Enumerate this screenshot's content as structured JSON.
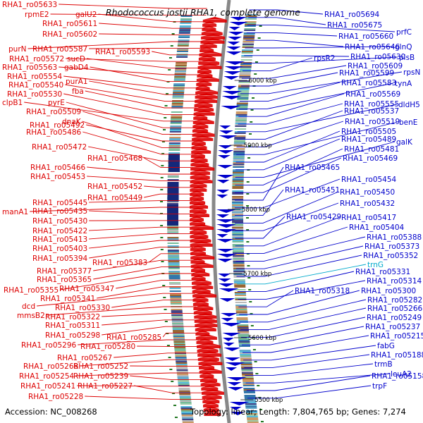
{
  "title": "Rhodococcus jostii RHA1, complete genome",
  "footer": {
    "accession": "Accession: NC_008268",
    "summary": "Topology: linear; Length: 7,804,765 bp; Genes: 7,274"
  },
  "colors": {
    "left_strand": "#dd0000",
    "right_strand": "#0000cc",
    "rna": "#00aacc",
    "backbone": "#888888"
  },
  "kbp_ticks": [
    "6000 kbp",
    "5900 kbp",
    "5800 kbp",
    "5700 kbp",
    "5600 kbp",
    "5500 kbp"
  ],
  "left_labels": [
    "RHA1_ro05633",
    "rpmE2",
    "galU2",
    "RHA1_ro05611",
    "RHA1_ro05602",
    "purN",
    "RHA1_ro05587",
    "RHA1_ro05593",
    "RHA1_ro05572",
    "sucD",
    "RHA1_ro05563",
    "gabD4",
    "RHA1_ro05554",
    "purA1",
    "RHA1_ro05540",
    "fba",
    "RHA1_ro05530",
    "clpB1",
    "pyrE",
    "RHA1_ro05509",
    "RHA1_ro05492",
    "dnaK",
    "RHA1_ro05486",
    "RHA1_ro05472",
    "RHA1_ro05468",
    "RHA1_ro05466",
    "RHA1_ro05453",
    "RHA1_ro05452",
    "RHA1_ro05449",
    "RHA1_ro05445",
    "manA1",
    "RHA1_ro05435",
    "RHA1_ro05430",
    "RHA1_ro05422",
    "RHA1_ro05413",
    "RHA1_ro05403",
    "RHA1_ro05394",
    "RHA1_ro05383",
    "RHA1_ro05377",
    "RHA1_ro05365",
    "RHA1_ro05355",
    "RHA1_ro05347",
    "RHA1_ro05341",
    "dcd",
    "RHA1_ro05330",
    "mmsB2",
    "RHA1_ro05322",
    "RHA1_ro05311",
    "RHA1_ro05298",
    "RHA1_ro05285",
    "RHA1_ro05296",
    "RHA1_ro05280",
    "RHA1_ro05267",
    "RHA1_ro05268",
    "RHA1_ro05252",
    "RHA1_ro05254",
    "RHA1_ro05239",
    "RHA1_ro05241",
    "RHA1_ro05227",
    "RHA1_ro05228"
  ],
  "right_labels": [
    "RHA1_ro05694",
    "RHA1_ro05675",
    "prfC",
    "RHA1_ro05660",
    "RHA1_ro05646",
    "glnQ",
    "RHA1_ro05630",
    "plsB",
    "rpsR2",
    "RHA1_ro05609",
    "RHA1_ro05599",
    "rpsN",
    "RHA1_ro05583",
    "tynA",
    "RHA1_ro05569",
    "RHA1_ro05555",
    "dldH5",
    "RHA1_ro05537",
    "RHA1_ro05519",
    "benE",
    "RHA1_ro05505",
    "RHA1_ro05489",
    "galK",
    "RHA1_ro05481",
    "RHA1_ro05469",
    "RHA1_ro05465",
    "RHA1_ro05454",
    "RHA1_ro05451",
    "RHA1_ro05450",
    "RHA1_ro05432",
    "RHA1_ro05429",
    "RHA1_ro05417",
    "RHA1_ro05404",
    "RHA1_ro05388",
    "RHA1_ro05373",
    "RHA1_ro05352",
    "trnG",
    "RHA1_ro05331",
    "RHA1_ro05314",
    "RHA1_ro05318",
    "RHA1_ro05300",
    "RHA1_ro05282",
    "RHA1_ro05266",
    "RHA1_ro05249",
    "RHA1_ro05237",
    "RHA1_ro05215",
    "fabG",
    "RHA1_ro05188",
    "trmB",
    "leuA2",
    "RHA1_ro05158",
    "trpF"
  ]
}
